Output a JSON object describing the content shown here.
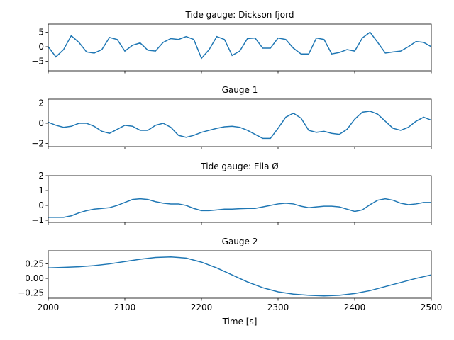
{
  "chart_data": [
    {
      "type": "line",
      "title": "Tide gauge: Dickson fjord",
      "color": "#1f77b4",
      "x": [
        2000,
        2010,
        2020,
        2030,
        2040,
        2050,
        2060,
        2070,
        2080,
        2090,
        2100,
        2110,
        2120,
        2130,
        2140,
        2150,
        2160,
        2170,
        2180,
        2190,
        2200,
        2210,
        2220,
        2230,
        2240,
        2250,
        2260,
        2270,
        2280,
        2290,
        2300,
        2310,
        2320,
        2330,
        2340,
        2350,
        2360,
        2370,
        2380,
        2390,
        2400,
        2410,
        2420,
        2430,
        2440,
        2450,
        2460,
        2470,
        2480,
        2490,
        2500
      ],
      "values": [
        0,
        -3.5,
        -1,
        3.8,
        1.5,
        -1.8,
        -2.2,
        -1,
        3.2,
        2.5,
        -1.5,
        0.5,
        1.3,
        -1.2,
        -1.5,
        1.5,
        2.8,
        2.5,
        3.5,
        2.5,
        -4,
        -1,
        3.5,
        2.5,
        -3,
        -1.5,
        2.8,
        3,
        -0.5,
        -0.5,
        3,
        2.5,
        -0.5,
        -2.5,
        -2.5,
        3,
        2.5,
        -2.5,
        -2,
        -1,
        -1.5,
        3,
        5,
        1.5,
        -2.2,
        -1.8,
        -1.5,
        0,
        1.8,
        1.5,
        0
      ],
      "xlim": [
        2000,
        2500
      ],
      "xticks": [
        2000,
        2100,
        2200,
        2300,
        2400,
        2500
      ],
      "ylim": [
        -8.3,
        7.8
      ],
      "yticks": [
        5,
        0,
        {
          "value": -5,
          "label": "−5"
        }
      ]
    },
    {
      "type": "line",
      "title": "Gauge 1",
      "color": "#1f77b4",
      "x": [
        2000,
        2010,
        2020,
        2030,
        2040,
        2050,
        2060,
        2070,
        2080,
        2090,
        2100,
        2110,
        2120,
        2130,
        2140,
        2150,
        2160,
        2170,
        2180,
        2190,
        2200,
        2210,
        2220,
        2230,
        2240,
        2250,
        2260,
        2270,
        2280,
        2290,
        2300,
        2310,
        2320,
        2330,
        2340,
        2350,
        2360,
        2370,
        2380,
        2390,
        2400,
        2410,
        2420,
        2430,
        2440,
        2450,
        2460,
        2470,
        2480,
        2490,
        2500
      ],
      "values": [
        0.1,
        -0.2,
        -0.4,
        -0.3,
        0,
        0,
        -0.3,
        -0.8,
        -1,
        -0.6,
        -0.2,
        -0.3,
        -0.7,
        -0.7,
        -0.2,
        0,
        -0.4,
        -1.2,
        -1.4,
        -1.2,
        -0.9,
        -0.7,
        -0.5,
        -0.35,
        -0.3,
        -0.4,
        -0.7,
        -1.1,
        -1.5,
        -1.5,
        -0.5,
        0.6,
        1,
        0.5,
        -0.7,
        -0.9,
        -0.8,
        -1,
        -1.1,
        -0.6,
        0.4,
        1.1,
        1.2,
        0.9,
        0.2,
        -0.5,
        -0.7,
        -0.4,
        0.2,
        0.6,
        0.3
      ],
      "xlim": [
        2000,
        2500
      ],
      "xticks": [
        2000,
        2100,
        2200,
        2300,
        2400,
        2500
      ],
      "ylim": [
        -2.32,
        2.39
      ],
      "yticks": [
        2,
        0,
        {
          "value": -2,
          "label": "−2"
        }
      ]
    },
    {
      "type": "line",
      "title": "Tide gauge: Ella Ø",
      "color": "#1f77b4",
      "x": [
        2000,
        2010,
        2020,
        2030,
        2040,
        2050,
        2060,
        2070,
        2080,
        2090,
        2100,
        2110,
        2120,
        2130,
        2140,
        2150,
        2160,
        2170,
        2180,
        2190,
        2200,
        2210,
        2220,
        2230,
        2240,
        2250,
        2260,
        2270,
        2280,
        2290,
        2300,
        2310,
        2320,
        2330,
        2340,
        2350,
        2360,
        2370,
        2380,
        2390,
        2400,
        2410,
        2420,
        2430,
        2440,
        2450,
        2460,
        2470,
        2480,
        2490,
        2500
      ],
      "values": [
        -0.8,
        -0.8,
        -0.8,
        -0.7,
        -0.5,
        -0.35,
        -0.25,
        -0.2,
        -0.15,
        0,
        0.2,
        0.4,
        0.45,
        0.4,
        0.25,
        0.15,
        0.1,
        0.1,
        0,
        -0.2,
        -0.35,
        -0.35,
        -0.3,
        -0.25,
        -0.25,
        -0.22,
        -0.2,
        -0.2,
        -0.1,
        0,
        0.1,
        0.15,
        0.1,
        -0.05,
        -0.15,
        -0.1,
        -0.05,
        -0.05,
        -0.1,
        -0.25,
        -0.4,
        -0.3,
        0.05,
        0.35,
        0.45,
        0.35,
        0.15,
        0.05,
        0.1,
        0.2,
        0.2
      ],
      "xlim": [
        2000,
        2500
      ],
      "xticks": [
        2000,
        2100,
        2200,
        2300,
        2400,
        2500
      ],
      "ylim": [
        -1.14,
        2
      ],
      "yticks": [
        2,
        1,
        0,
        {
          "value": -1,
          "label": "−1"
        }
      ]
    },
    {
      "type": "line",
      "title": "Gauge 2",
      "color": "#1f77b4",
      "xlabel": "Time [s]",
      "x": [
        2000,
        2020,
        2040,
        2060,
        2080,
        2100,
        2120,
        2140,
        2160,
        2180,
        2200,
        2220,
        2240,
        2260,
        2280,
        2300,
        2320,
        2340,
        2360,
        2380,
        2400,
        2420,
        2440,
        2460,
        2480,
        2500
      ],
      "values": [
        0.18,
        0.19,
        0.2,
        0.22,
        0.25,
        0.29,
        0.33,
        0.36,
        0.37,
        0.35,
        0.28,
        0.18,
        0.06,
        -0.06,
        -0.16,
        -0.23,
        -0.27,
        -0.29,
        -0.3,
        -0.29,
        -0.26,
        -0.21,
        -0.14,
        -0.07,
        0,
        0.06
      ],
      "xlim": [
        2000,
        2500
      ],
      "xticks": [
        2000,
        2100,
        2200,
        2300,
        2400,
        2500
      ],
      "ylim": [
        -0.34,
        0.476
      ],
      "yticks": [
        0.25,
        {
          "value": 0,
          "label": "0.00"
        },
        {
          "value": -0.25,
          "label": "−0.25"
        }
      ]
    }
  ]
}
